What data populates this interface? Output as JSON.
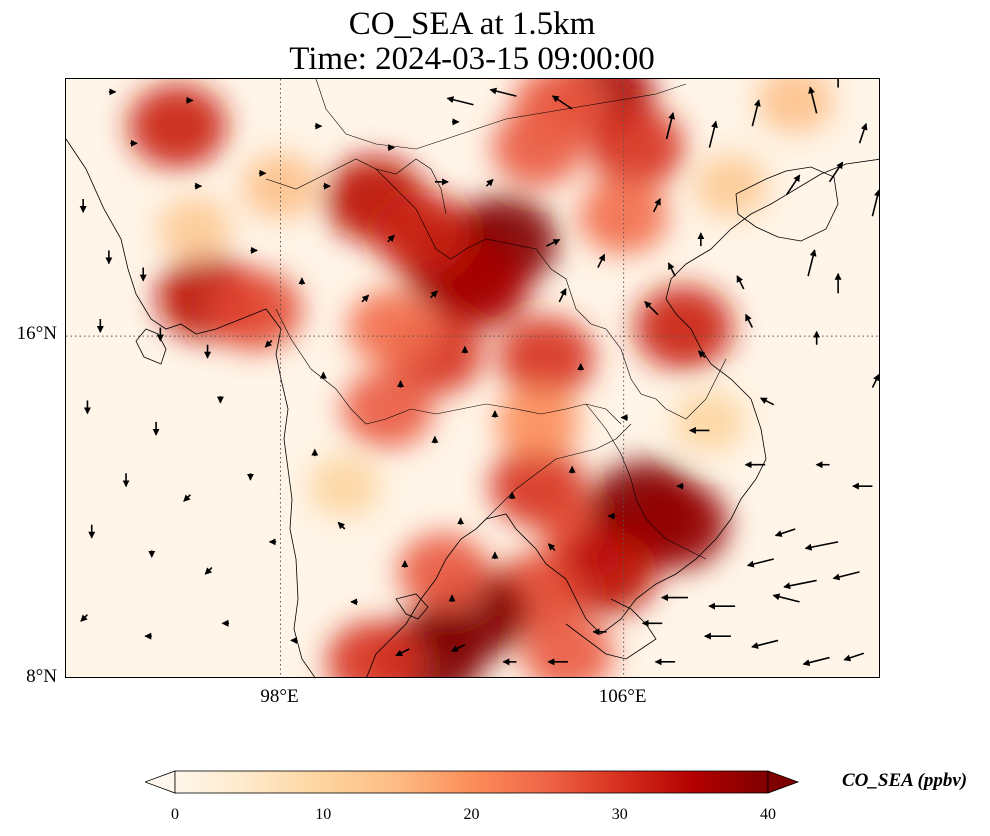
{
  "map": {
    "title_line1": "CO_SEA at 1.5km",
    "title_line2": "Time: 2024-03-15 09:00:00",
    "variable": "CO_SEA",
    "level": "1.5km",
    "time": "2024-03-15 09:00:00",
    "extent": {
      "lon_min": 93,
      "lon_max": 112,
      "lat_min": 8,
      "lat_max": 22
    },
    "gridlines": {
      "style": "dotted",
      "color": "#555555",
      "lon": [
        98,
        106
      ],
      "lat": [
        8,
        16
      ]
    },
    "lat_ticks": [
      "16°N",
      "8°N"
    ],
    "lon_ticks": [
      "98°E",
      "106°E"
    ],
    "colormap": "OrRd",
    "hotspots": [
      {
        "lon": 102.2,
        "lat": 17.7,
        "value": 45
      },
      {
        "lon": 103.2,
        "lat": 18.2,
        "value": 40
      },
      {
        "lon": 102.6,
        "lat": 17.2,
        "value": 36
      },
      {
        "lon": 101.6,
        "lat": 15.6,
        "value": 30
      },
      {
        "lon": 100.6,
        "lat": 16.2,
        "value": 24
      },
      {
        "lon": 100.2,
        "lat": 19.2,
        "value": 34
      },
      {
        "lon": 101.3,
        "lat": 18.4,
        "value": 32
      },
      {
        "lon": 96.3,
        "lat": 16.9,
        "value": 34
      },
      {
        "lon": 97.4,
        "lat": 16.6,
        "value": 28
      },
      {
        "lon": 95.6,
        "lat": 20.9,
        "value": 32
      },
      {
        "lon": 105.5,
        "lat": 21.6,
        "value": 36
      },
      {
        "lon": 104.5,
        "lat": 21.4,
        "value": 26
      },
      {
        "lon": 106.3,
        "lat": 20.4,
        "value": 30
      },
      {
        "lon": 104.0,
        "lat": 20.4,
        "value": 26
      },
      {
        "lon": 107.4,
        "lat": 16.2,
        "value": 32
      },
      {
        "lon": 106.0,
        "lat": 18.8,
        "value": 24
      },
      {
        "lon": 104.2,
        "lat": 15.5,
        "value": 30
      },
      {
        "lon": 100.5,
        "lat": 14.3,
        "value": 26
      },
      {
        "lon": 104.0,
        "lat": 12.5,
        "value": 30
      },
      {
        "lon": 105.2,
        "lat": 11.3,
        "value": 28
      },
      {
        "lon": 106.5,
        "lat": 12.0,
        "value": 42
      },
      {
        "lon": 107.2,
        "lat": 11.6,
        "value": 38
      },
      {
        "lon": 105.6,
        "lat": 10.5,
        "value": 34
      },
      {
        "lon": 104.0,
        "lat": 10.0,
        "value": 28
      },
      {
        "lon": 102.5,
        "lat": 9.5,
        "value": 40
      },
      {
        "lon": 101.5,
        "lat": 8.5,
        "value": 40
      },
      {
        "lon": 101.8,
        "lat": 10.5,
        "value": 26
      },
      {
        "lon": 100.2,
        "lat": 8.4,
        "value": 30
      },
      {
        "lon": 104.7,
        "lat": 8.6,
        "value": 26
      },
      {
        "lon": 104.0,
        "lat": 14.0,
        "value": 20
      },
      {
        "lon": 108.5,
        "lat": 19.5,
        "value": 12
      },
      {
        "lon": 98.0,
        "lat": 19.5,
        "value": 14
      },
      {
        "lon": 96.0,
        "lat": 18.5,
        "value": 12
      },
      {
        "lon": 110.0,
        "lat": 21.5,
        "value": 14
      },
      {
        "lon": 99.5,
        "lat": 12.5,
        "value": 10
      },
      {
        "lon": 108.0,
        "lat": 14.0,
        "value": 10
      }
    ],
    "wind_vectors": [
      {
        "lon": 103.5,
        "lat": 21.6,
        "u": -4,
        "v": 1
      },
      {
        "lon": 102.5,
        "lat": 21.4,
        "u": -4,
        "v": 1
      },
      {
        "lon": 104.8,
        "lat": 21.3,
        "u": -3,
        "v": 2
      },
      {
        "lon": 107.0,
        "lat": 20.6,
        "u": 1,
        "v": 4
      },
      {
        "lon": 108.0,
        "lat": 20.4,
        "u": 1,
        "v": 4
      },
      {
        "lon": 109.0,
        "lat": 20.9,
        "u": 1,
        "v": 4
      },
      {
        "lon": 110.5,
        "lat": 21.2,
        "u": -1,
        "v": 4
      },
      {
        "lon": 111.0,
        "lat": 21.8,
        "u": 0,
        "v": 3
      },
      {
        "lon": 111.5,
        "lat": 20.5,
        "u": 1,
        "v": 3
      },
      {
        "lon": 109.8,
        "lat": 19.3,
        "u": 2,
        "v": 3
      },
      {
        "lon": 110.8,
        "lat": 19.6,
        "u": 2,
        "v": 3
      },
      {
        "lon": 111.8,
        "lat": 18.8,
        "u": 1,
        "v": 4
      },
      {
        "lon": 110.3,
        "lat": 17.4,
        "u": 1,
        "v": 4
      },
      {
        "lon": 111.0,
        "lat": 17.0,
        "u": 0,
        "v": 3
      },
      {
        "lon": 108.8,
        "lat": 17.1,
        "u": -1,
        "v": 2
      },
      {
        "lon": 107.8,
        "lat": 18.1,
        "u": 0,
        "v": 2
      },
      {
        "lon": 107.2,
        "lat": 17.4,
        "u": -1,
        "v": 2
      },
      {
        "lon": 106.8,
        "lat": 16.5,
        "u": -2,
        "v": 2
      },
      {
        "lon": 109.0,
        "lat": 16.2,
        "u": -1,
        "v": 2
      },
      {
        "lon": 110.5,
        "lat": 15.8,
        "u": 0,
        "v": 2
      },
      {
        "lon": 111.8,
        "lat": 14.8,
        "u": 1,
        "v": 2
      },
      {
        "lon": 109.5,
        "lat": 14.4,
        "u": -2,
        "v": 1
      },
      {
        "lon": 108.0,
        "lat": 13.8,
        "u": -3,
        "v": 0
      },
      {
        "lon": 109.3,
        "lat": 13.0,
        "u": -3,
        "v": 0
      },
      {
        "lon": 110.8,
        "lat": 13.0,
        "u": -2,
        "v": 0
      },
      {
        "lon": 111.8,
        "lat": 12.5,
        "u": -3,
        "v": 0
      },
      {
        "lon": 110.0,
        "lat": 11.5,
        "u": -3,
        "v": -1
      },
      {
        "lon": 111.0,
        "lat": 11.2,
        "u": -5,
        "v": -1
      },
      {
        "lon": 109.5,
        "lat": 10.8,
        "u": -4,
        "v": -1
      },
      {
        "lon": 110.5,
        "lat": 10.3,
        "u": -5,
        "v": -1
      },
      {
        "lon": 108.6,
        "lat": 9.7,
        "u": -4,
        "v": 0
      },
      {
        "lon": 110.1,
        "lat": 9.8,
        "u": -4,
        "v": 1
      },
      {
        "lon": 111.5,
        "lat": 10.5,
        "u": -4,
        "v": -1
      },
      {
        "lon": 107.5,
        "lat": 9.9,
        "u": -4,
        "v": 0
      },
      {
        "lon": 106.9,
        "lat": 9.3,
        "u": -3,
        "v": 0
      },
      {
        "lon": 108.5,
        "lat": 9.0,
        "u": -4,
        "v": 0
      },
      {
        "lon": 109.6,
        "lat": 8.9,
        "u": -4,
        "v": -1
      },
      {
        "lon": 110.8,
        "lat": 8.5,
        "u": -4,
        "v": -1
      },
      {
        "lon": 111.6,
        "lat": 8.6,
        "u": -3,
        "v": -1
      },
      {
        "lon": 107.2,
        "lat": 8.4,
        "u": -3,
        "v": 0
      },
      {
        "lon": 105.6,
        "lat": 9.1,
        "u": -2,
        "v": 0
      },
      {
        "lon": 104.7,
        "lat": 8.4,
        "u": -3,
        "v": 0
      },
      {
        "lon": 103.5,
        "lat": 8.4,
        "u": -2,
        "v": 0
      },
      {
        "lon": 102.3,
        "lat": 8.8,
        "u": -2,
        "v": -1
      },
      {
        "lon": 101.0,
        "lat": 8.7,
        "u": -2,
        "v": -1
      },
      {
        "lon": 94.0,
        "lat": 21.7,
        "u": 1,
        "v": 0
      },
      {
        "lon": 95.8,
        "lat": 21.5,
        "u": 1,
        "v": 0
      },
      {
        "lon": 94.5,
        "lat": 20.5,
        "u": 1,
        "v": 0
      },
      {
        "lon": 96.0,
        "lat": 19.5,
        "u": 1,
        "v": 0
      },
      {
        "lon": 97.5,
        "lat": 19.8,
        "u": 1,
        "v": 0
      },
      {
        "lon": 99.0,
        "lat": 19.5,
        "u": 1,
        "v": 0
      },
      {
        "lon": 100.5,
        "lat": 20.4,
        "u": 1,
        "v": 0
      },
      {
        "lon": 93.4,
        "lat": 19.2,
        "u": 0,
        "v": -2
      },
      {
        "lon": 94.0,
        "lat": 18.0,
        "u": 0,
        "v": -2
      },
      {
        "lon": 94.8,
        "lat": 17.6,
        "u": 0,
        "v": -2
      },
      {
        "lon": 93.8,
        "lat": 16.4,
        "u": 0,
        "v": -2
      },
      {
        "lon": 95.2,
        "lat": 16.2,
        "u": 0,
        "v": -2
      },
      {
        "lon": 96.3,
        "lat": 15.8,
        "u": 0,
        "v": -2
      },
      {
        "lon": 97.8,
        "lat": 15.9,
        "u": -1,
        "v": -1
      },
      {
        "lon": 93.5,
        "lat": 14.5,
        "u": 0,
        "v": -2
      },
      {
        "lon": 95.1,
        "lat": 14.0,
        "u": 0,
        "v": -2
      },
      {
        "lon": 96.6,
        "lat": 14.6,
        "u": 0,
        "v": -1
      },
      {
        "lon": 94.4,
        "lat": 12.8,
        "u": 0,
        "v": -2
      },
      {
        "lon": 95.9,
        "lat": 12.3,
        "u": -1,
        "v": -1
      },
      {
        "lon": 97.3,
        "lat": 12.8,
        "u": 0,
        "v": -1
      },
      {
        "lon": 93.6,
        "lat": 11.6,
        "u": 0,
        "v": -2
      },
      {
        "lon": 95.0,
        "lat": 11.0,
        "u": 0,
        "v": -1
      },
      {
        "lon": 96.4,
        "lat": 10.6,
        "u": -1,
        "v": -1
      },
      {
        "lon": 97.9,
        "lat": 11.2,
        "u": -1,
        "v": 0
      },
      {
        "lon": 93.5,
        "lat": 9.5,
        "u": -1,
        "v": -1
      },
      {
        "lon": 95.0,
        "lat": 9.0,
        "u": -1,
        "v": 0
      },
      {
        "lon": 96.8,
        "lat": 9.3,
        "u": -1,
        "v": 0
      },
      {
        "lon": 98.4,
        "lat": 8.9,
        "u": -1,
        "v": 0
      },
      {
        "lon": 99.8,
        "lat": 9.8,
        "u": -1,
        "v": 0
      },
      {
        "lon": 99.5,
        "lat": 11.5,
        "u": -1,
        "v": 1
      },
      {
        "lon": 98.8,
        "lat": 13.2,
        "u": 0,
        "v": 1
      },
      {
        "lon": 99.0,
        "lat": 15.0,
        "u": 0,
        "v": 1
      },
      {
        "lon": 99.9,
        "lat": 16.8,
        "u": 1,
        "v": 1
      },
      {
        "lon": 100.5,
        "lat": 18.2,
        "u": 1,
        "v": 1
      },
      {
        "lon": 101.6,
        "lat": 19.6,
        "u": 2,
        "v": 0
      },
      {
        "lon": 102.8,
        "lat": 19.5,
        "u": 1,
        "v": 1
      },
      {
        "lon": 101.5,
        "lat": 16.9,
        "u": 1,
        "v": 1
      },
      {
        "lon": 102.3,
        "lat": 15.6,
        "u": 0,
        "v": 1
      },
      {
        "lon": 100.8,
        "lat": 14.8,
        "u": 0,
        "v": 1
      },
      {
        "lon": 101.6,
        "lat": 13.5,
        "u": 0,
        "v": 1
      },
      {
        "lon": 103.0,
        "lat": 14.1,
        "u": 0,
        "v": 1
      },
      {
        "lon": 104.5,
        "lat": 16.8,
        "u": 1,
        "v": 2
      },
      {
        "lon": 104.2,
        "lat": 18.1,
        "u": 2,
        "v": 1
      },
      {
        "lon": 105.4,
        "lat": 17.6,
        "u": 1,
        "v": 2
      },
      {
        "lon": 105.0,
        "lat": 15.2,
        "u": 0,
        "v": 1
      },
      {
        "lon": 106.1,
        "lat": 14.1,
        "u": -1,
        "v": 0
      },
      {
        "lon": 103.4,
        "lat": 12.2,
        "u": 0,
        "v": 1
      },
      {
        "lon": 104.8,
        "lat": 12.8,
        "u": 0,
        "v": 1
      },
      {
        "lon": 102.2,
        "lat": 11.6,
        "u": 0,
        "v": 1
      },
      {
        "lon": 103.0,
        "lat": 10.8,
        "u": 0,
        "v": 1
      },
      {
        "lon": 104.4,
        "lat": 11.0,
        "u": -1,
        "v": 1
      },
      {
        "lon": 105.8,
        "lat": 11.8,
        "u": -1,
        "v": 0
      },
      {
        "lon": 107.4,
        "lat": 12.5,
        "u": -1,
        "v": 0
      },
      {
        "lon": 102.0,
        "lat": 9.8,
        "u": 0,
        "v": 1
      },
      {
        "lon": 100.9,
        "lat": 10.6,
        "u": 0,
        "v": 1
      },
      {
        "lon": 98.5,
        "lat": 17.2,
        "u": 0,
        "v": 1
      },
      {
        "lon": 97.3,
        "lat": 18.0,
        "u": 1,
        "v": 0
      },
      {
        "lon": 98.8,
        "lat": 20.9,
        "u": 1,
        "v": 0
      },
      {
        "lon": 102.0,
        "lat": 21.0,
        "u": 1,
        "v": 0
      },
      {
        "lon": 106.7,
        "lat": 18.9,
        "u": 1,
        "v": 2
      },
      {
        "lon": 107.9,
        "lat": 15.5,
        "u": -1,
        "v": 1
      }
    ]
  },
  "colorbar": {
    "label": "CO_SEA (ppbv)",
    "min": 0,
    "max": 40,
    "extend": "both",
    "tick_labels": [
      "0",
      "10",
      "20",
      "30",
      "40"
    ],
    "colors": [
      "#fff7ec",
      "#fee8c8",
      "#fdd49e",
      "#fdbb84",
      "#fc8d59",
      "#ef6548",
      "#d7301f",
      "#b30000",
      "#7f0000"
    ]
  }
}
